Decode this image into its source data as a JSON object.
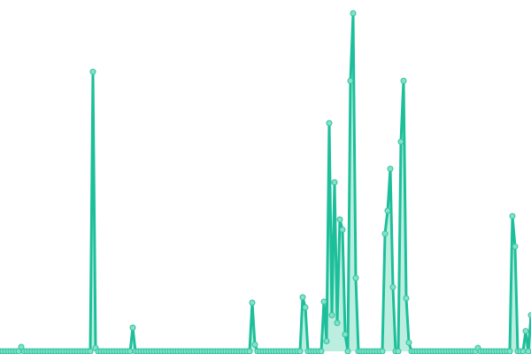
{
  "chart_data": {
    "type": "line",
    "title": "",
    "xlabel": "",
    "ylabel": "",
    "grid": false,
    "legend": "none",
    "ylim": [
      0,
      100
    ],
    "x_count": 201,
    "colors": {
      "line": "#1dbf9a",
      "point_fill": "#86e0c8",
      "point_stroke": "#2cc3a0",
      "area": "#8fe3cc"
    },
    "values": [
      0,
      0,
      0,
      0,
      0,
      0,
      0,
      0,
      1.3,
      0,
      0,
      0,
      0,
      0,
      0,
      0,
      0,
      0,
      0,
      0,
      0,
      0,
      0,
      0,
      0,
      0,
      0,
      0,
      0,
      0,
      0,
      0,
      0,
      0,
      0,
      82.7,
      1,
      0,
      0,
      0,
      0,
      0,
      0,
      0,
      0,
      0,
      0,
      0,
      0,
      0,
      7,
      0,
      0,
      0,
      0,
      0,
      0,
      0,
      0,
      0,
      0,
      0,
      0,
      0,
      0,
      0,
      0,
      0,
      0,
      0,
      0,
      0,
      0,
      0,
      0,
      0,
      0,
      0,
      0,
      0,
      0,
      0,
      0,
      0,
      0,
      0,
      0,
      0,
      0,
      0,
      0,
      0,
      0,
      0,
      0,
      14.4,
      2,
      0,
      0,
      0,
      0,
      0,
      0,
      0,
      0,
      0,
      0,
      0,
      0,
      0,
      0,
      0,
      0,
      0,
      16,
      13,
      0,
      0,
      0,
      0,
      0,
      0,
      14.7,
      3,
      67.5,
      10.7,
      50,
      8.4,
      39,
      36,
      5,
      0,
      80,
      100,
      21.7,
      0,
      0,
      0,
      0,
      0,
      0,
      0,
      0,
      0,
      0,
      34.8,
      41.6,
      54,
      19,
      0,
      0,
      62,
      80,
      15.7,
      2.6,
      0,
      0,
      0,
      0,
      0,
      0,
      0,
      0,
      0,
      0,
      0,
      0,
      0,
      0,
      0,
      0,
      0,
      0,
      0,
      0,
      0,
      0,
      0,
      0,
      0,
      1,
      0,
      0,
      0,
      0,
      0,
      0,
      0,
      0,
      0,
      0,
      0,
      0,
      40,
      31,
      0,
      0,
      0,
      6,
      0,
      10.7
    ]
  }
}
